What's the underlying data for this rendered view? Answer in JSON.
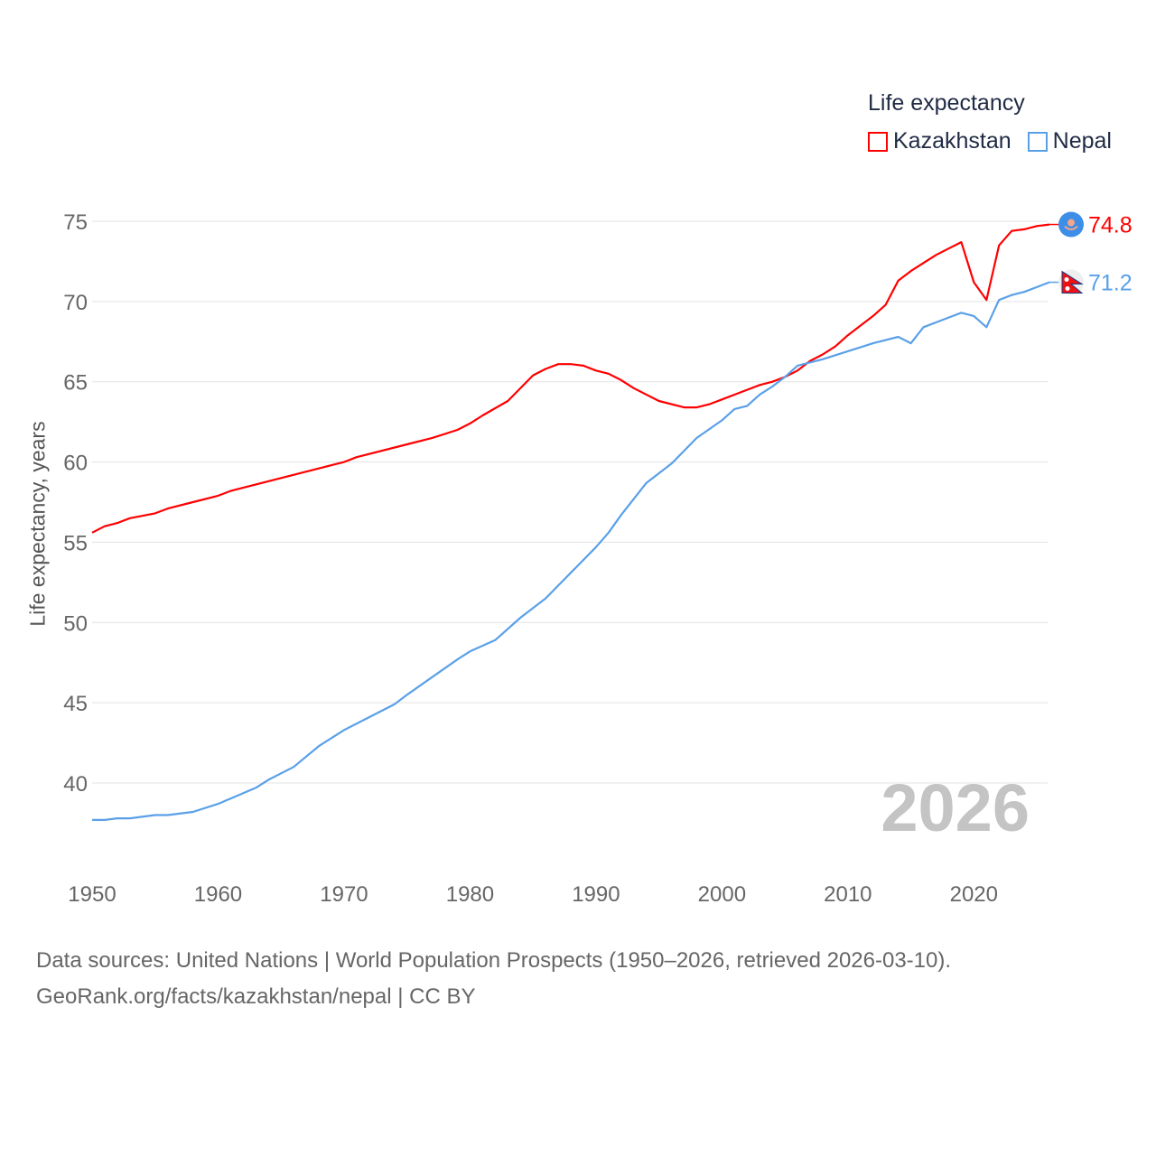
{
  "chart_data": {
    "type": "line",
    "legend_title": "Life expectancy",
    "ylabel": "Life expectancy, years",
    "xlabel": "",
    "xlim": [
      1950,
      2026
    ],
    "ylim": [
      35,
      76
    ],
    "yticks": [
      40,
      45,
      50,
      55,
      60,
      65,
      70,
      75
    ],
    "xticks": [
      1950,
      1960,
      1970,
      1980,
      1990,
      2000,
      2010,
      2020
    ],
    "grid": true,
    "legend_position": "top-right",
    "year_label": "2026",
    "series": [
      {
        "name": "Kazakhstan",
        "color": "#ff0000",
        "end_label": "74.8",
        "points": [
          [
            1950,
            55.6
          ],
          [
            1951,
            56.0
          ],
          [
            1952,
            56.2
          ],
          [
            1953,
            56.5
          ],
          [
            1955,
            56.8
          ],
          [
            1956,
            57.1
          ],
          [
            1958,
            57.5
          ],
          [
            1960,
            57.9
          ],
          [
            1961,
            58.2
          ],
          [
            1965,
            59.0
          ],
          [
            1970,
            60.0
          ],
          [
            1971,
            60.3
          ],
          [
            1975,
            61.1
          ],
          [
            1977,
            61.5
          ],
          [
            1979,
            62.0
          ],
          [
            1980,
            62.4
          ],
          [
            1981,
            62.9
          ],
          [
            1983,
            63.8
          ],
          [
            1985,
            65.4
          ],
          [
            1986,
            65.8
          ],
          [
            1987,
            66.1
          ],
          [
            1988,
            66.1
          ],
          [
            1989,
            66.0
          ],
          [
            1990,
            65.7
          ],
          [
            1991,
            65.5
          ],
          [
            1992,
            65.1
          ],
          [
            1993,
            64.6
          ],
          [
            1995,
            63.8
          ],
          [
            1997,
            63.4
          ],
          [
            1998,
            63.4
          ],
          [
            1999,
            63.6
          ],
          [
            2000,
            63.9
          ],
          [
            2002,
            64.5
          ],
          [
            2003,
            64.8
          ],
          [
            2004,
            65.0
          ],
          [
            2005,
            65.3
          ],
          [
            2006,
            65.7
          ],
          [
            2007,
            66.3
          ],
          [
            2008,
            66.7
          ],
          [
            2009,
            67.2
          ],
          [
            2010,
            67.9
          ],
          [
            2012,
            69.1
          ],
          [
            2013,
            69.8
          ],
          [
            2014,
            71.3
          ],
          [
            2015,
            71.9
          ],
          [
            2016,
            72.4
          ],
          [
            2017,
            72.9
          ],
          [
            2018,
            73.3
          ],
          [
            2019,
            73.7
          ],
          [
            2020,
            71.2
          ],
          [
            2021,
            70.1
          ],
          [
            2022,
            73.5
          ],
          [
            2023,
            74.4
          ],
          [
            2024,
            74.5
          ],
          [
            2025,
            74.7
          ],
          [
            2026,
            74.8
          ]
        ]
      },
      {
        "name": "Nepal",
        "color": "#5aa0e8",
        "end_label": "71.2",
        "points": [
          [
            1950,
            37.7
          ],
          [
            1951,
            37.7
          ],
          [
            1952,
            37.8
          ],
          [
            1953,
            37.8
          ],
          [
            1955,
            38.0
          ],
          [
            1956,
            38.0
          ],
          [
            1958,
            38.2
          ],
          [
            1960,
            38.7
          ],
          [
            1963,
            39.7
          ],
          [
            1964,
            40.2
          ],
          [
            1966,
            41.0
          ],
          [
            1968,
            42.3
          ],
          [
            1970,
            43.3
          ],
          [
            1972,
            44.1
          ],
          [
            1974,
            44.9
          ],
          [
            1975,
            45.5
          ],
          [
            1977,
            46.6
          ],
          [
            1979,
            47.7
          ],
          [
            1980,
            48.2
          ],
          [
            1982,
            48.9
          ],
          [
            1984,
            50.3
          ],
          [
            1986,
            51.5
          ],
          [
            1988,
            53.1
          ],
          [
            1990,
            54.7
          ],
          [
            1991,
            55.6
          ],
          [
            1992,
            56.7
          ],
          [
            1994,
            58.7
          ],
          [
            1996,
            59.9
          ],
          [
            1998,
            61.5
          ],
          [
            2000,
            62.6
          ],
          [
            2001,
            63.3
          ],
          [
            2002,
            63.5
          ],
          [
            2003,
            64.2
          ],
          [
            2004,
            64.7
          ],
          [
            2005,
            65.3
          ],
          [
            2006,
            66.0
          ],
          [
            2008,
            66.4
          ],
          [
            2010,
            66.9
          ],
          [
            2012,
            67.4
          ],
          [
            2014,
            67.8
          ],
          [
            2015,
            67.4
          ],
          [
            2016,
            68.4
          ],
          [
            2018,
            69.0
          ],
          [
            2019,
            69.3
          ],
          [
            2020,
            69.1
          ],
          [
            2021,
            68.4
          ],
          [
            2022,
            70.1
          ],
          [
            2023,
            70.4
          ],
          [
            2024,
            70.6
          ],
          [
            2025,
            70.9
          ],
          [
            2026,
            71.2
          ]
        ]
      }
    ]
  },
  "footer": {
    "line1": "Data sources: United Nations | World Population Prospects (1950–2026, retrieved 2026-03-10).",
    "line2": "GeoRank.org/facts/kazakhstan/nepal | CC BY"
  }
}
